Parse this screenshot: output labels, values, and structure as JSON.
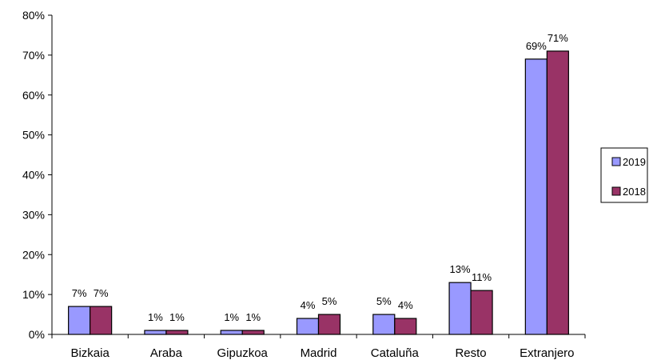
{
  "chart_data": {
    "type": "bar",
    "categories": [
      "Bizkaia",
      "Araba",
      "Gipuzkoa",
      "Madrid",
      "Cataluña",
      "Resto",
      "Extranjero"
    ],
    "series": [
      {
        "name": "2019",
        "values": [
          7,
          1,
          1,
          4,
          5,
          13,
          69
        ],
        "labels": [
          "7%",
          "1%",
          "1%",
          "4%",
          "5%",
          "13%",
          "69%"
        ],
        "color": "#9999ff"
      },
      {
        "name": "2018",
        "values": [
          7,
          1,
          1,
          5,
          4,
          11,
          71
        ],
        "labels": [
          "7%",
          "1%",
          "1%",
          "5%",
          "4%",
          "11%",
          "71%"
        ],
        "color": "#993366"
      }
    ],
    "yticks": [
      "0%",
      "10%",
      "20%",
      "30%",
      "40%",
      "50%",
      "60%",
      "70%",
      "80%"
    ],
    "ylim": [
      0,
      80
    ],
    "legend_position": "right",
    "grid": false
  }
}
